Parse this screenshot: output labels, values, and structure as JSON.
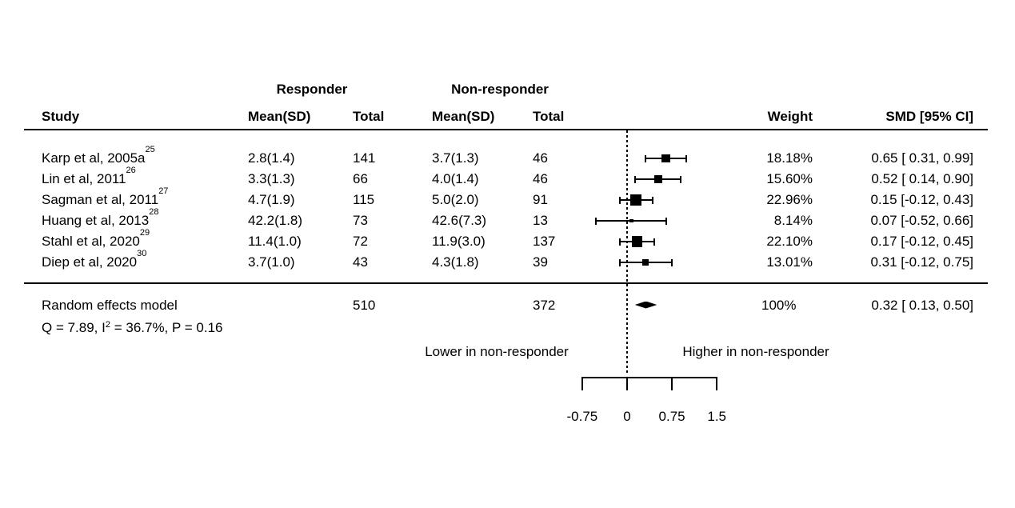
{
  "header": {
    "responder_group": "Responder",
    "nonresponder_group": "Non-responder",
    "study": "Study",
    "mean_sd": "Mean(SD)",
    "total": "Total",
    "weight": "Weight",
    "smd_ci": "SMD [95% CI]"
  },
  "chart_data": {
    "type": "forest",
    "effect_measure": "SMD",
    "studies": [
      {
        "label": "Karp et al, 2005a",
        "ref": "25",
        "responder_mean_sd": "2.8(1.4)",
        "responder_total": "141",
        "nonresponder_mean_sd": "3.7(1.3)",
        "nonresponder_total": "46",
        "weight": "18.18%",
        "weight_value": 18.18,
        "smd_label": "0.65 [ 0.31, 0.99]",
        "smd": 0.65,
        "ci_low": 0.31,
        "ci_high": 0.99
      },
      {
        "label": "Lin et al, 2011",
        "ref": "26",
        "responder_mean_sd": "3.3(1.3)",
        "responder_total": "66",
        "nonresponder_mean_sd": "4.0(1.4)",
        "nonresponder_total": "46",
        "weight": "15.60%",
        "weight_value": 15.6,
        "smd_label": "0.52 [ 0.14, 0.90]",
        "smd": 0.52,
        "ci_low": 0.14,
        "ci_high": 0.9
      },
      {
        "label": "Sagman et al, 2011",
        "ref": "27",
        "responder_mean_sd": "4.7(1.9)",
        "responder_total": "115",
        "nonresponder_mean_sd": "5.0(2.0)",
        "nonresponder_total": "91",
        "weight": "22.96%",
        "weight_value": 22.96,
        "smd_label": "0.15 [-0.12, 0.43]",
        "smd": 0.15,
        "ci_low": -0.12,
        "ci_high": 0.43
      },
      {
        "label": "Huang et al, 2013",
        "ref": "28",
        "responder_mean_sd": "42.2(1.8)",
        "responder_total": "73",
        "nonresponder_mean_sd": "42.6(7.3)",
        "nonresponder_total": "13",
        "weight": "8.14%",
        "weight_value": 8.14,
        "smd_label": "0.07 [-0.52, 0.66]",
        "smd": 0.07,
        "ci_low": -0.52,
        "ci_high": 0.66
      },
      {
        "label": "Stahl et al, 2020",
        "ref": "29",
        "responder_mean_sd": "11.4(1.0)",
        "responder_total": "72",
        "nonresponder_mean_sd": "11.9(3.0)",
        "nonresponder_total": "137",
        "weight": "22.10%",
        "weight_value": 22.1,
        "smd_label": "0.17 [-0.12, 0.45]",
        "smd": 0.17,
        "ci_low": -0.12,
        "ci_high": 0.45
      },
      {
        "label": "Diep et al, 2020",
        "ref": "30",
        "responder_mean_sd": "3.7(1.0)",
        "responder_total": "43",
        "nonresponder_mean_sd": "4.3(1.8)",
        "nonresponder_total": "39",
        "weight": "13.01%",
        "weight_value": 13.01,
        "smd_label": "0.31 [-0.12, 0.75]",
        "smd": 0.31,
        "ci_low": -0.12,
        "ci_high": 0.75
      }
    ],
    "summary": {
      "label": "Random effects model",
      "responder_total": "510",
      "nonresponder_total": "372",
      "weight": "100%",
      "smd_label": "0.32 [ 0.13, 0.50]",
      "smd": 0.32,
      "ci_low": 0.13,
      "ci_high": 0.5
    },
    "heterogeneity": {
      "prefix": "Q = 7.89, I",
      "sup": "2",
      "suffix": " = 36.7%, P = 0.16"
    },
    "axis": {
      "ticks": [
        -0.75,
        0,
        0.75,
        1.5
      ],
      "tick_labels": [
        "-0.75",
        "0",
        "0.75",
        "1.5"
      ],
      "ref_value": 0,
      "left_label": "Lower in non-responder",
      "right_label": "Higher in non-responder"
    },
    "colors": {
      "marker": "#000000",
      "text": "#000000",
      "background": "#ffffff"
    }
  }
}
